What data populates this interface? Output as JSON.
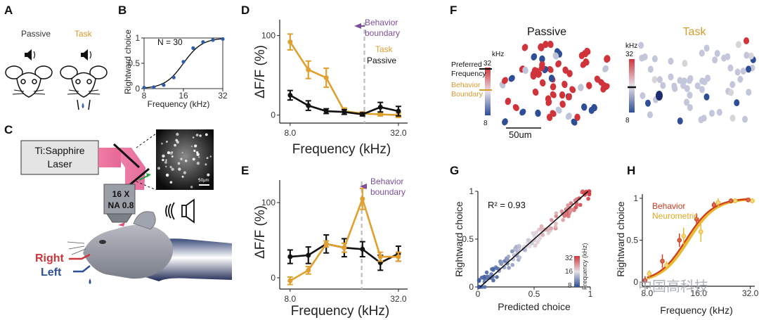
{
  "panel_letters": [
    "A",
    "B",
    "C",
    "D",
    "E",
    "F",
    "G",
    "H"
  ],
  "panel_a": {
    "labels": [
      "Passive",
      "Task"
    ]
  },
  "panel_c": {
    "laser": [
      "Ti:Sapphire",
      "Laser"
    ],
    "objective": [
      "16 X",
      "NA 0.8"
    ],
    "right": "Right",
    "left": "Left",
    "scalebar": "50μm"
  },
  "panel_f": {
    "passive": "Passive",
    "task": "Task",
    "khz": "kHz",
    "c_max": "32",
    "c_min": "8",
    "preferred": [
      "Preferred",
      "Frequency"
    ],
    "boundary": [
      "Behavior",
      "Boundary"
    ],
    "scalebar": "50um"
  },
  "watermark": "中国高科技",
  "colors": {
    "task": "#E0A030",
    "passive": "#111111",
    "boundary": "#7B4F9A",
    "behavior": "#D03A1E",
    "neurometric": "#E8B830",
    "high": "#D0343A",
    "low": "#2E4F96"
  },
  "chart_data": [
    {
      "panel": "B",
      "type": "scatter",
      "xlabel": "Frequency (kHz)",
      "ylabel": "Rightward choice",
      "annotation": "N = 30",
      "xscale": "log2",
      "xlim": [
        8,
        32
      ],
      "ylim": [
        0,
        1
      ],
      "xticks": [
        "8",
        "16",
        "32"
      ],
      "yticks": [
        "0",
        "0.5",
        "1"
      ],
      "x": [
        8,
        9.5,
        11.3,
        13.5,
        16,
        19,
        22.6,
        26.9,
        32
      ],
      "y": [
        0.02,
        0.03,
        0.07,
        0.22,
        0.53,
        0.8,
        0.92,
        0.96,
        0.98
      ],
      "fit": "sigmoid"
    },
    {
      "panel": "D",
      "type": "line",
      "xlabel": "Frequency (kHz)",
      "ylabel": "ΔF/F (%)",
      "xscale": "log2",
      "xlim": [
        7,
        36
      ],
      "ylim": [
        -10,
        120
      ],
      "xticks": [
        "8.0",
        "32.0"
      ],
      "yticks": [
        "0",
        "100"
      ],
      "boundary_label": [
        "Behavior",
        "boundary"
      ],
      "boundary_x": 20.7,
      "series": [
        {
          "name": "Task",
          "x": [
            8,
            10.1,
            12.7,
            16,
            20.2,
            25.4,
            32
          ],
          "y": [
            92,
            57,
            47,
            5,
            2,
            1,
            0
          ],
          "err": [
            10,
            11,
            12,
            4,
            2,
            2,
            3
          ]
        },
        {
          "name": "Passive",
          "x": [
            8,
            10.1,
            12.7,
            16,
            20.2,
            25.4,
            32
          ],
          "y": [
            25,
            12,
            5,
            4,
            1,
            10,
            5
          ],
          "err": [
            6,
            6,
            3,
            3,
            2,
            6,
            6
          ]
        }
      ]
    },
    {
      "panel": "E",
      "type": "line",
      "xlabel": "Frequency (kHz)",
      "ylabel": "ΔF/F (%)",
      "xscale": "log2",
      "xlim": [
        7,
        36
      ],
      "ylim": [
        -15,
        130
      ],
      "xticks": [
        "8.0",
        "32.0"
      ],
      "yticks": [
        "0",
        "100"
      ],
      "boundary_label": [
        "Behavior",
        "boundary"
      ],
      "boundary_x": 20,
      "series": [
        {
          "name": "Task",
          "x": [
            8,
            10.1,
            12.7,
            16,
            20.2,
            25.4,
            32
          ],
          "y": [
            -4,
            10,
            45,
            40,
            105,
            28,
            28
          ],
          "err": [
            5,
            5,
            4,
            6,
            14,
            6,
            6
          ]
        },
        {
          "name": "Passive",
          "x": [
            8,
            10.1,
            12.7,
            16,
            20.2,
            25.4,
            32
          ],
          "y": [
            28,
            30,
            45,
            40,
            38,
            20,
            32
          ],
          "err": [
            9,
            11,
            12,
            12,
            10,
            10,
            10
          ]
        }
      ]
    },
    {
      "panel": "G",
      "type": "scatter",
      "xlabel": "Predicted choice",
      "ylabel": "Rightward choice",
      "annotation": "R² = 0.93",
      "xlim": [
        0,
        1
      ],
      "ylim": [
        0,
        1
      ],
      "xticks": [
        "0",
        "0.5",
        "1"
      ],
      "yticks": [
        "0",
        "0.5",
        "1"
      ],
      "colorbar": {
        "label": "Frequency (kHz)",
        "ticks": [
          "32",
          "16",
          "8"
        ]
      },
      "fit": [
        [
          0.02,
          0.0
        ],
        [
          0.98,
          1.0
        ]
      ]
    },
    {
      "panel": "H",
      "type": "line",
      "xlabel": "Frequency (kHz)",
      "ylabel": "Rightward choice",
      "xscale": "log2",
      "xlim": [
        7.5,
        34
      ],
      "ylim": [
        -0.05,
        1.05
      ],
      "xticks": [
        "8.0",
        "16.0",
        "32.0"
      ],
      "yticks": [
        "0",
        "0.5",
        "1"
      ],
      "series": [
        {
          "name": "Behavior",
          "x": [
            8,
            10.1,
            12.7,
            16,
            20.2,
            25.4,
            32
          ],
          "y": [
            0.02,
            0.25,
            0.5,
            0.75,
            0.92,
            0.97,
            0.98
          ],
          "err": [
            0.05,
            0.08,
            0.08,
            0.07,
            0.04,
            0.03,
            0.02
          ]
        },
        {
          "name": "Neurometric",
          "x": [
            8,
            10.1,
            12.7,
            16,
            20.2,
            25.4,
            32
          ],
          "y": [
            0.1,
            0.2,
            0.55,
            0.6,
            0.95,
            0.97,
            0.97
          ],
          "err": [
            0.04,
            0.05,
            0.1,
            0.12,
            0.05,
            0.03,
            0.03
          ]
        }
      ]
    }
  ]
}
